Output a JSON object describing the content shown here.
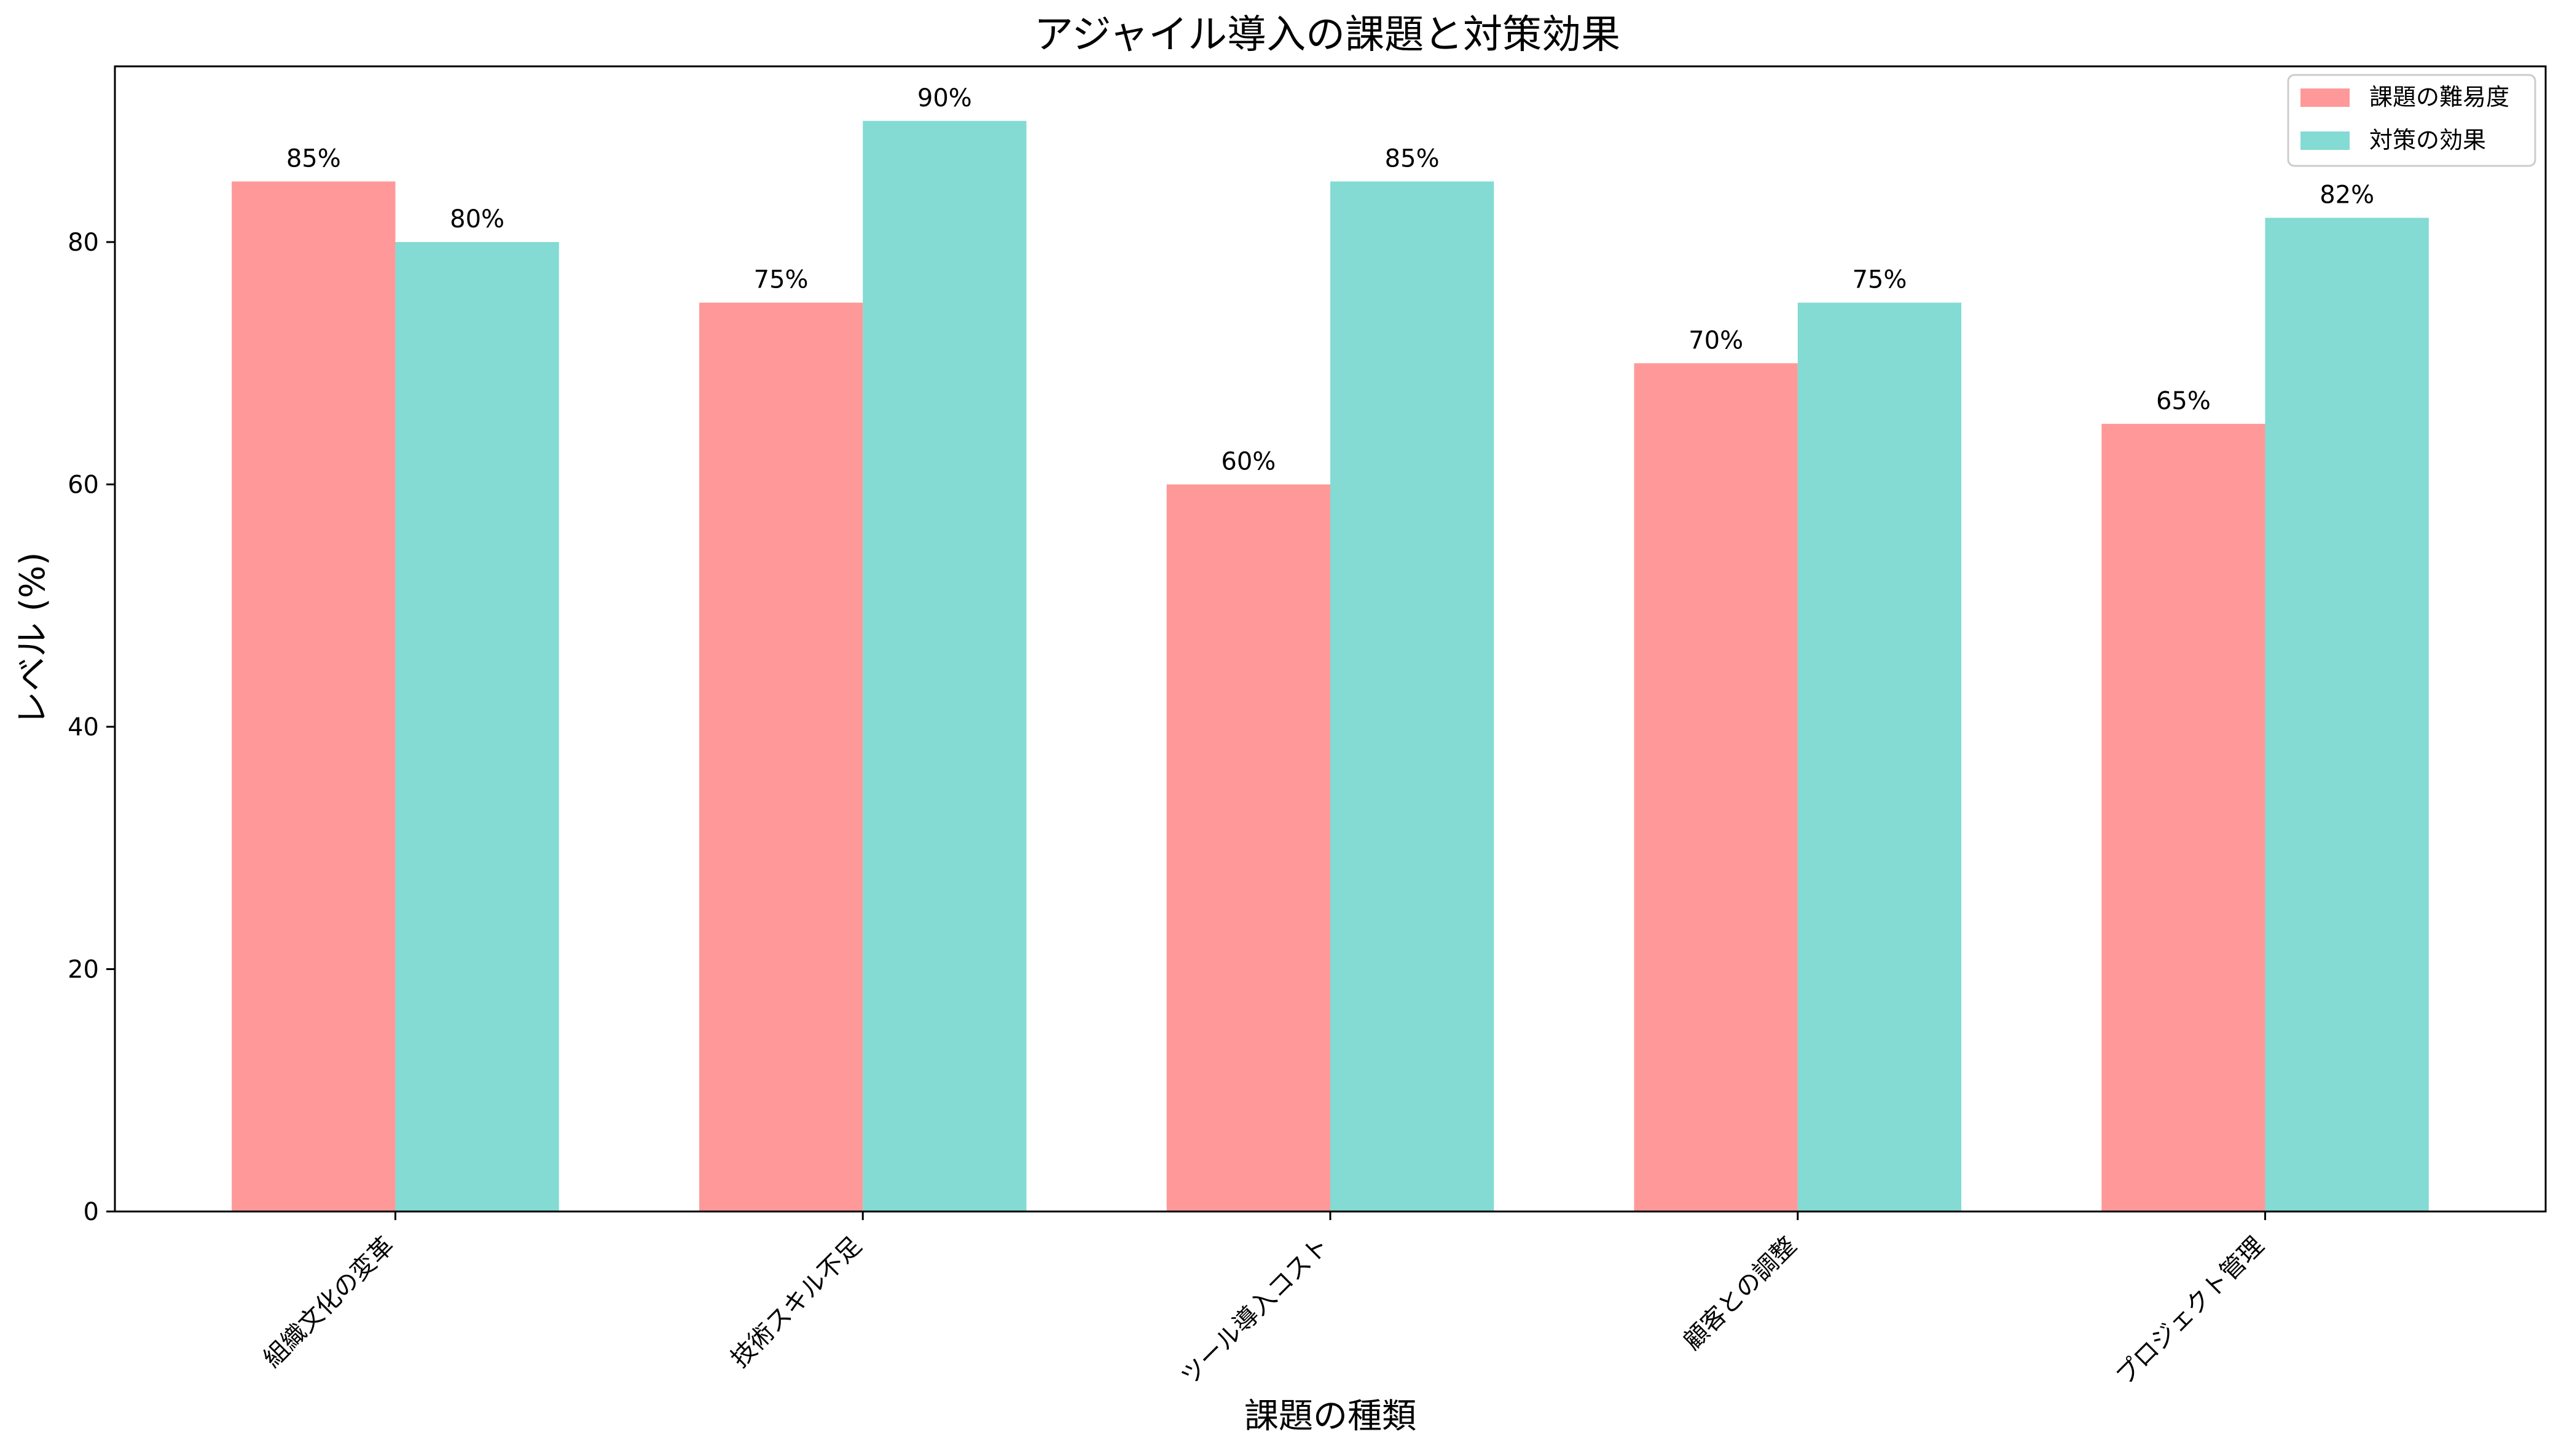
{
  "chart_data": {
    "type": "bar",
    "title": "アジャイル導入の課題と対策効果",
    "xlabel": "課題の種類",
    "ylabel": "レベル (%)",
    "categories": [
      "組織文化の変革",
      "技術スキル不足",
      "ツール導入コスト",
      "顧客との調整",
      "プロジェクト管理"
    ],
    "series": [
      {
        "name": "課題の難易度",
        "values": [
          85,
          75,
          60,
          70,
          65
        ],
        "color": "#ff9999"
      },
      {
        "name": "対策の効果",
        "values": [
          80,
          90,
          85,
          75,
          82
        ],
        "color": "#83dbd3"
      }
    ],
    "value_label_suffix": "%",
    "ylim": [
      0,
      94.5
    ],
    "yticks": [
      0,
      20,
      40,
      60,
      80
    ],
    "legend_position": "upper right",
    "grid": false
  }
}
